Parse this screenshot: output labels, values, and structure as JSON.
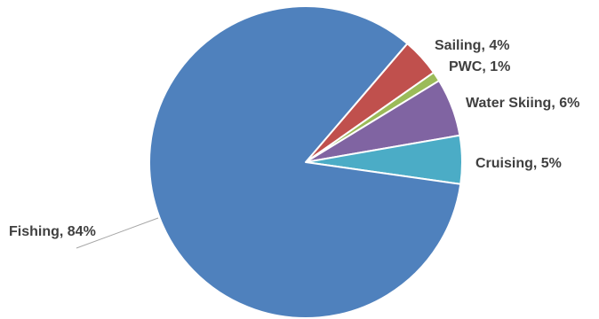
{
  "chart_data": {
    "type": "pie",
    "title": "",
    "slices": [
      {
        "label": "Fishing",
        "value": 84,
        "display": "Fishing, 84%",
        "color": "#4F81BD"
      },
      {
        "label": "Sailing",
        "value": 4,
        "display": "Sailing, 4%",
        "color": "#C0504D"
      },
      {
        "label": "PWC",
        "value": 1,
        "display": "PWC, 1%",
        "color": "#9BBB59"
      },
      {
        "label": "Water Skiing",
        "value": 6,
        "display": "Water Skiing, 6%",
        "color": "#8064A2"
      },
      {
        "label": "Cruising",
        "value": 5,
        "display": "Cruising, 5%",
        "color": "#4BACC6"
      }
    ],
    "legend": "none",
    "data_labels": "outside"
  }
}
